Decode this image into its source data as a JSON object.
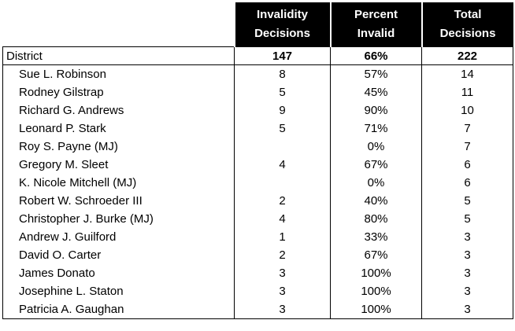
{
  "headers": [
    {
      "line1": "Invalidity",
      "line2": "Decisions"
    },
    {
      "line1": "Percent",
      "line2": "Invalid"
    },
    {
      "line1": "Total",
      "line2": "Decisions"
    }
  ],
  "summary": {
    "label": "District",
    "invalidity": "147",
    "percent": "66%",
    "total": "222"
  },
  "rows": [
    {
      "name": "Sue L. Robinson",
      "invalidity": "8",
      "percent": "57%",
      "total": "14"
    },
    {
      "name": "Rodney Gilstrap",
      "invalidity": "5",
      "percent": "45%",
      "total": "11"
    },
    {
      "name": "Richard G. Andrews",
      "invalidity": "9",
      "percent": "90%",
      "total": "10"
    },
    {
      "name": "Leonard P. Stark",
      "invalidity": "5",
      "percent": "71%",
      "total": "7"
    },
    {
      "name": "Roy S. Payne (MJ)",
      "invalidity": "",
      "percent": "0%",
      "total": "7"
    },
    {
      "name": "Gregory M. Sleet",
      "invalidity": "4",
      "percent": "67%",
      "total": "6"
    },
    {
      "name": "K. Nicole Mitchell (MJ)",
      "invalidity": "",
      "percent": "0%",
      "total": "6"
    },
    {
      "name": "Robert W. Schroeder III",
      "invalidity": "2",
      "percent": "40%",
      "total": "5"
    },
    {
      "name": "Christopher J. Burke (MJ)",
      "invalidity": "4",
      "percent": "80%",
      "total": "5"
    },
    {
      "name": "Andrew J. Guilford",
      "invalidity": "1",
      "percent": "33%",
      "total": "3"
    },
    {
      "name": "David O. Carter",
      "invalidity": "2",
      "percent": "67%",
      "total": "3"
    },
    {
      "name": "James Donato",
      "invalidity": "3",
      "percent": "100%",
      "total": "3"
    },
    {
      "name": "Josephine L. Staton",
      "invalidity": "3",
      "percent": "100%",
      "total": "3"
    },
    {
      "name": "Patricia A. Gaughan",
      "invalidity": "3",
      "percent": "100%",
      "total": "3"
    }
  ]
}
